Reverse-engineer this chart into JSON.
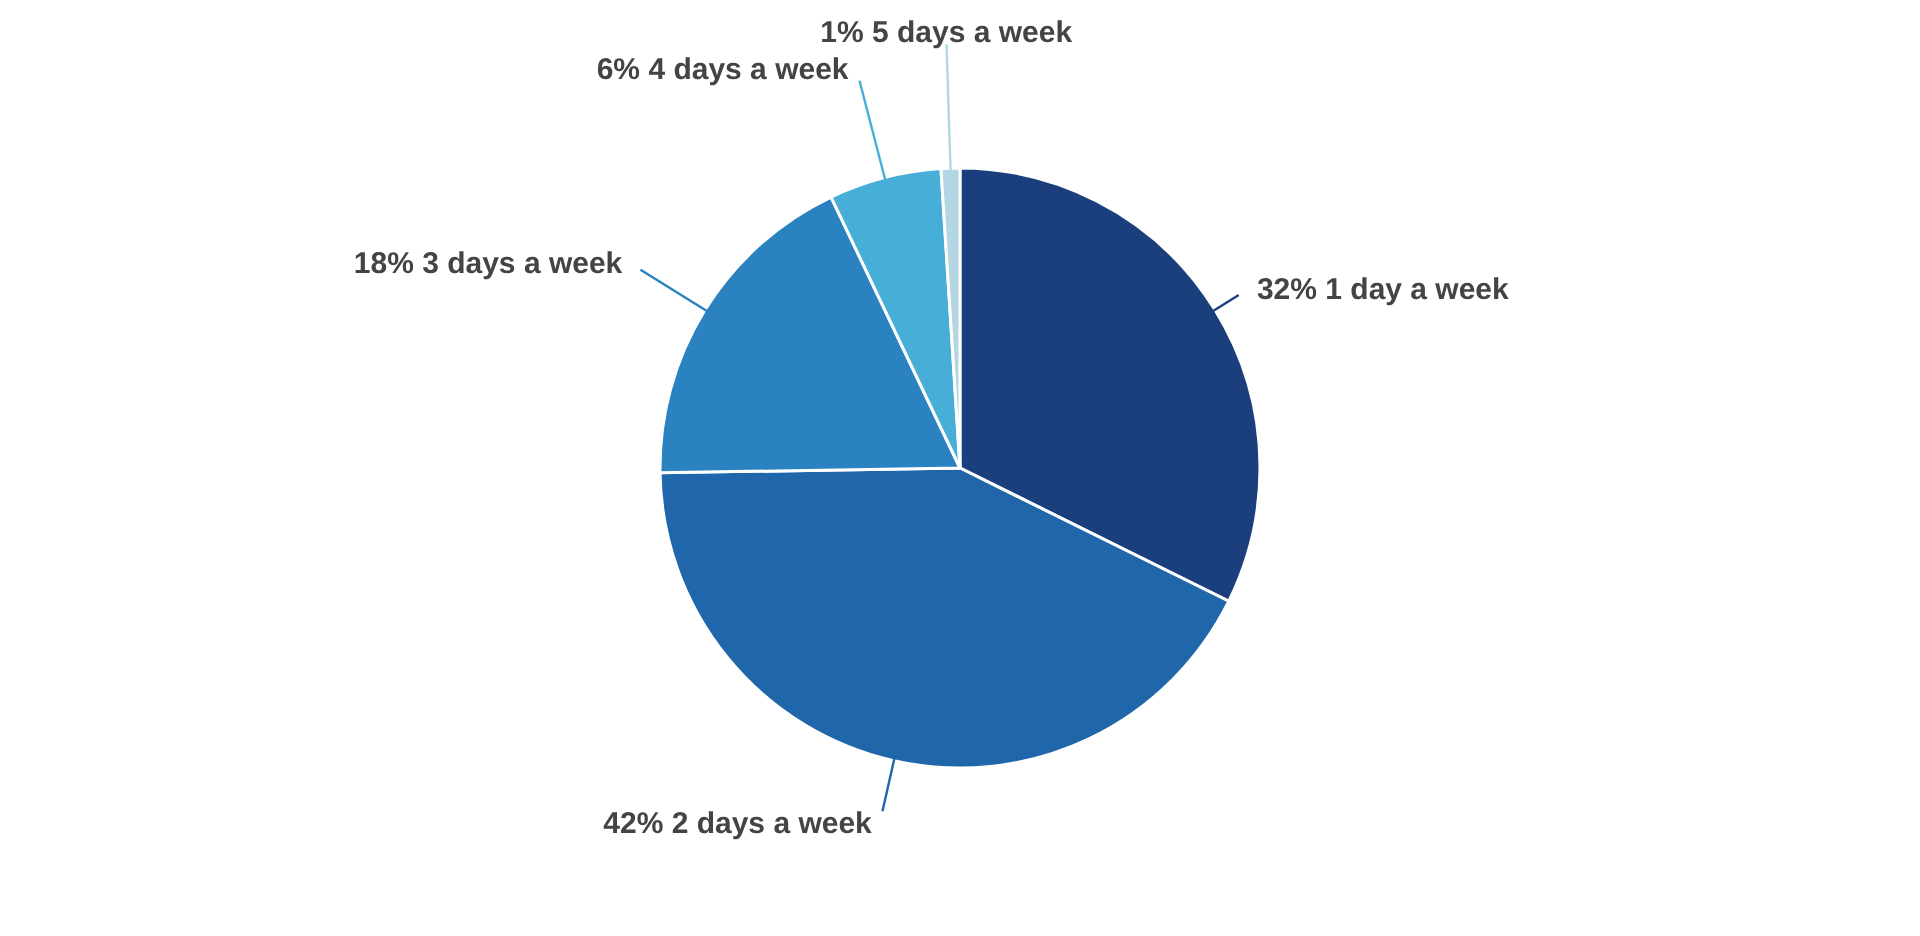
{
  "chart_data": {
    "type": "pie",
    "categories": [
      "1 day a week",
      "2 days a week",
      "3 days a week",
      "4 days a week",
      "5 days a week"
    ],
    "values": [
      32,
      42,
      18,
      6,
      1
    ],
    "value_labels": [
      "32%",
      "42%",
      "18%",
      "6%",
      "1%"
    ],
    "colors": [
      "#1b3f7c",
      "#1f66ab",
      "#2b82c0",
      "#47aed8",
      "#b3d6e2"
    ],
    "legend": false
  }
}
